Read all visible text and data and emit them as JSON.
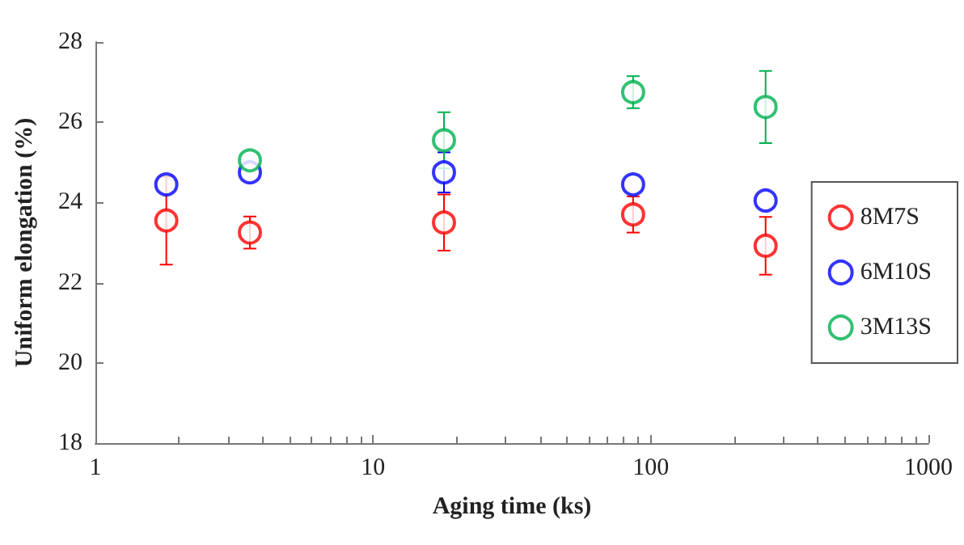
{
  "chart_data": {
    "type": "scatter",
    "xlabel": "Aging time (ks)",
    "ylabel": "Uniform elongation (%)",
    "x": [
      1.8,
      3.6,
      18,
      86.4,
      259.2
    ],
    "series": [
      {
        "name": "8M7S",
        "color": "#ff0000",
        "values": [
          23.55,
          23.25,
          23.5,
          23.7,
          22.92
        ],
        "errors": [
          1.1,
          0.4,
          0.7,
          0.45,
          0.72
        ]
      },
      {
        "name": "6M10S",
        "color": "#0000ff",
        "values": [
          24.45,
          24.75,
          24.75,
          24.45,
          24.05
        ],
        "errors": [
          null,
          null,
          0.5,
          null,
          null
        ]
      },
      {
        "name": "3M13S",
        "color": "#00b050",
        "values": [
          null,
          25.05,
          25.55,
          26.75,
          26.38
        ],
        "errors": [
          null,
          null,
          0.7,
          0.4,
          0.9
        ]
      }
    ],
    "log": "x",
    "xlim": [
      1,
      1000
    ],
    "xticks": [
      1,
      10,
      100,
      1000
    ],
    "ylim": [
      18,
      28
    ],
    "yticks": [
      18,
      20,
      22,
      24,
      26,
      28
    ],
    "grid": false,
    "legend": "right",
    "marker": "circle"
  }
}
